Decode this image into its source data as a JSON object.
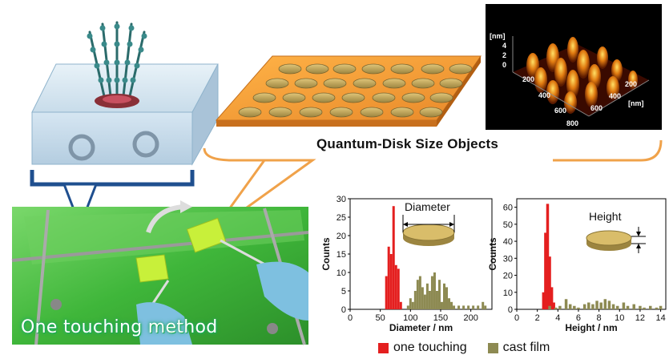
{
  "title": "Quantum-Disk Size Objects",
  "photo_caption": "One touching method",
  "afm": {
    "z_unit": "[nm]",
    "z_ticks": [
      "4",
      "2",
      "0"
    ],
    "x_ticks": [
      "200",
      "400",
      "600",
      "800"
    ],
    "y_ticks": [
      "200",
      "400",
      "600"
    ],
    "xy_unit": "[nm]"
  },
  "legend": [
    {
      "label": "one touching",
      "color": "#e41f1f"
    },
    {
      "label": "cast film",
      "color": "#8d8a52"
    }
  ],
  "chart_data": [
    {
      "type": "bar",
      "xlabel": "Diameter / nm",
      "ylabel": "Counts",
      "inset_label": "Diameter",
      "xlim": [
        0,
        235
      ],
      "ylim": [
        0,
        30
      ],
      "xticks": [
        "0",
        "50",
        "100",
        "150",
        "200"
      ],
      "yticks": [
        "0",
        "5",
        "10",
        "15",
        "20",
        "25",
        "30"
      ],
      "series": [
        {
          "name": "one touching",
          "x": [
            60,
            64,
            68,
            72,
            76,
            80,
            84
          ],
          "values": [
            9,
            17,
            15,
            28,
            12,
            11,
            2
          ]
        },
        {
          "name": "cast film",
          "x": [
            96,
            100,
            104,
            108,
            112,
            116,
            120,
            124,
            128,
            132,
            136,
            140,
            144,
            148,
            152,
            156,
            160,
            164,
            168,
            172,
            180,
            188,
            196,
            204,
            212,
            220,
            224
          ],
          "values": [
            1,
            3,
            2,
            5,
            8,
            9,
            6,
            4,
            7,
            5,
            9,
            10,
            5,
            8,
            2,
            7,
            6,
            3,
            2,
            1,
            1,
            1,
            1,
            1,
            1,
            2,
            1
          ]
        }
      ]
    },
    {
      "type": "bar",
      "xlabel": "Height / nm",
      "ylabel": "Counts",
      "inset_label": "Height",
      "xlim": [
        0,
        14.5
      ],
      "ylim": [
        0,
        65
      ],
      "xticks": [
        "0",
        "2",
        "4",
        "6",
        "8",
        "10",
        "12",
        "14"
      ],
      "yticks": [
        "0",
        "10",
        "20",
        "30",
        "40",
        "50",
        "60"
      ],
      "series": [
        {
          "name": "one touching",
          "x": [
            2.6,
            2.8,
            3.0,
            3.2,
            3.4,
            3.6
          ],
          "values": [
            10,
            45,
            62,
            31,
            13,
            4
          ]
        },
        {
          "name": "cast film",
          "x": [
            3.2,
            3.8,
            4.2,
            4.8,
            5.2,
            5.6,
            6.0,
            6.6,
            7.0,
            7.4,
            7.8,
            8.2,
            8.6,
            9.0,
            9.4,
            9.8,
            10.4,
            10.8,
            11.4,
            12.0,
            12.4,
            13.0,
            13.6,
            14.0
          ],
          "values": [
            2,
            1,
            2,
            6,
            3,
            2,
            1,
            3,
            4,
            3,
            5,
            4,
            6,
            5,
            3,
            2,
            4,
            2,
            3,
            2,
            1,
            2,
            1,
            2
          ]
        }
      ]
    }
  ]
}
